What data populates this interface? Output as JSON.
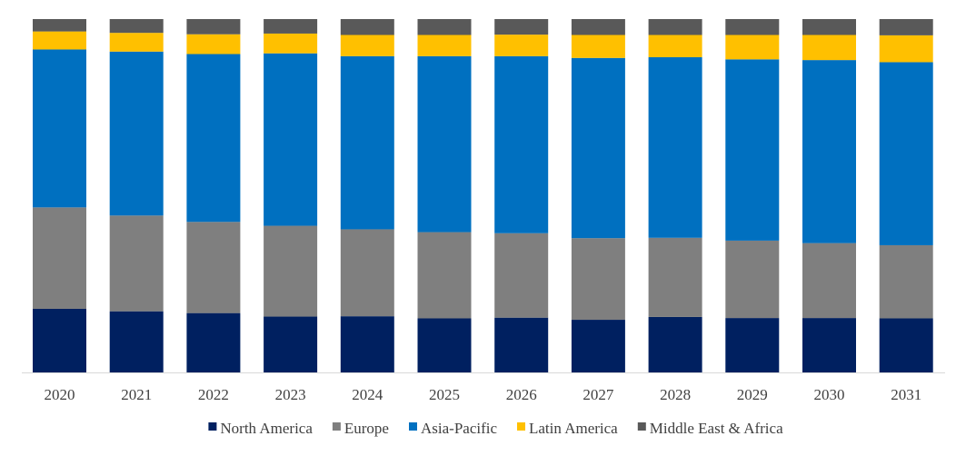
{
  "chart_data": {
    "type": "bar",
    "stacked": true,
    "normalized": true,
    "title": "",
    "xlabel": "",
    "ylabel": "",
    "ylim": [
      0,
      100
    ],
    "grid": false,
    "legend_position": "bottom",
    "categories": [
      "2020",
      "2021",
      "2022",
      "2023",
      "2024",
      "2025",
      "2026",
      "2027",
      "2028",
      "2029",
      "2030",
      "2031"
    ],
    "series": [
      {
        "name": "North America",
        "color": "#002060",
        "values": [
          18.0,
          17.3,
          16.8,
          15.8,
          15.9,
          15.3,
          15.5,
          14.9,
          15.7,
          15.4,
          15.4,
          15.3
        ]
      },
      {
        "name": "Europe",
        "color": "#7F7F7F",
        "values": [
          28.7,
          27.1,
          25.8,
          25.7,
          24.6,
          24.4,
          23.9,
          23.1,
          22.4,
          21.9,
          21.2,
          20.7
        ]
      },
      {
        "name": "Asia-Pacific",
        "color": "#0070C0",
        "values": [
          44.7,
          46.4,
          47.5,
          48.8,
          49.0,
          49.8,
          50.1,
          51.0,
          51.1,
          51.3,
          51.8,
          51.8
        ]
      },
      {
        "name": "Latin America",
        "color": "#FFC000",
        "values": [
          5.1,
          5.3,
          5.6,
          5.6,
          6.0,
          6.0,
          6.1,
          6.5,
          6.3,
          6.9,
          7.1,
          7.6
        ]
      },
      {
        "name": "Middle East & Africa",
        "color": "#595959",
        "values": [
          3.5,
          3.9,
          4.3,
          4.1,
          4.5,
          4.5,
          4.4,
          4.5,
          4.5,
          4.5,
          4.5,
          4.6
        ]
      }
    ]
  }
}
